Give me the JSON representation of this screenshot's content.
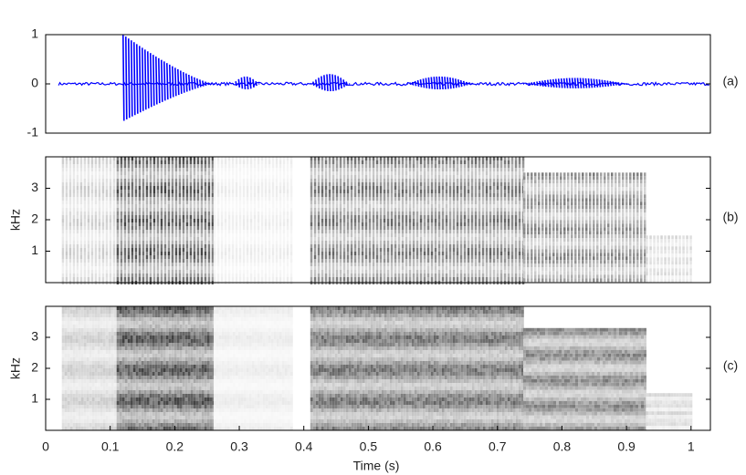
{
  "chart_data": [
    {
      "type": "waveform",
      "panel_label": "(a)",
      "xlim": [
        0,
        1.03
      ],
      "ylim": [
        -1,
        1
      ],
      "yticks": [
        -1,
        0,
        1
      ],
      "color": "#0000ff",
      "x": [
        0.12,
        0.29,
        0.41,
        0.56,
        0.74
      ],
      "x_end": [
        0.26,
        0.33,
        0.47,
        0.66,
        0.9
      ],
      "values": [
        1,
        0.15,
        0.2,
        0.15,
        0.12
      ]
    },
    {
      "type": "spectrogram",
      "panel_label": "(b)",
      "ylabel": "kHz",
      "xlim": [
        0,
        1.03
      ],
      "ylim": [
        0,
        4
      ],
      "yticks": [
        1,
        2,
        3
      ],
      "x": [
        0.025,
        0.11,
        0.26,
        0.41,
        0.74,
        0.93
      ],
      "x_end": [
        0.11,
        0.26,
        0.38,
        0.74,
        0.93,
        1.0
      ],
      "values": [
        4,
        4,
        4,
        4,
        3.5,
        1.5
      ]
    },
    {
      "type": "spectrogram",
      "panel_label": "(c)",
      "ylabel": "kHz",
      "xlabel": "Time (s)",
      "xlim": [
        0,
        1.03
      ],
      "ylim": [
        0,
        4
      ],
      "yticks": [
        1,
        2,
        3
      ],
      "xticks": [
        0,
        0.1,
        0.2,
        0.3,
        0.4,
        0.5,
        0.6,
        0.7,
        0.8,
        0.9,
        1
      ],
      "x": [
        0.025,
        0.11,
        0.26,
        0.41,
        0.74,
        0.93
      ],
      "x_end": [
        0.11,
        0.26,
        0.38,
        0.74,
        0.93,
        1.0
      ],
      "values": [
        4,
        4,
        4,
        4,
        3.3,
        1.2
      ]
    }
  ]
}
